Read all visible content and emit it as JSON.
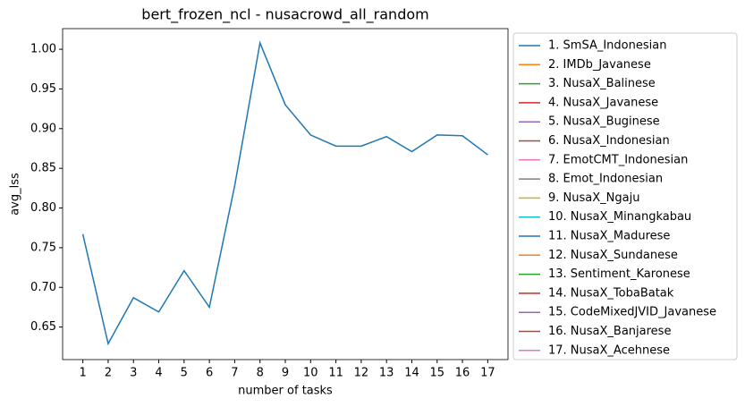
{
  "chart_data": {
    "type": "line",
    "title": "bert_frozen_ncl - nusacrowd_all_random",
    "xlabel": "number of tasks",
    "ylabel": "avg_lss",
    "x": [
      1,
      2,
      3,
      4,
      5,
      6,
      7,
      8,
      9,
      10,
      11,
      12,
      13,
      14,
      15,
      16,
      17
    ],
    "xlim": [
      0.2,
      17.8
    ],
    "xticks": [
      1,
      2,
      3,
      4,
      5,
      6,
      7,
      8,
      9,
      10,
      11,
      12,
      13,
      14,
      15,
      16,
      17
    ],
    "ylim": [
      0.609,
      1.026
    ],
    "yticks": [
      0.65,
      {
        "value": 0.7,
        "label": "0.70"
      },
      0.75,
      {
        "value": 0.8,
        "label": "0.80"
      },
      0.85,
      {
        "value": 0.9,
        "label": "0.90"
      },
      0.95,
      {
        "value": 1,
        "label": "1.00"
      }
    ],
    "grid": false,
    "legend": "outside-right",
    "series": [
      {
        "name": "1. SmSA_Indonesian",
        "color": "#1f77b4",
        "values": [
          0.767,
          0.629,
          0.687,
          0.669,
          0.721,
          0.675,
          0.828,
          1.008,
          0.93,
          0.892,
          0.878,
          0.878,
          0.89,
          0.871,
          0.892,
          0.891,
          0.867
        ]
      },
      {
        "name": "2. IMDb_Javanese",
        "color": "#ff7f0e",
        "values": [
          null,
          null,
          null,
          null,
          null,
          null,
          null,
          null,
          null,
          null,
          null,
          null,
          null,
          null,
          null,
          null,
          null
        ]
      },
      {
        "name": "3. NusaX_Balinese",
        "color": "#2ca02c",
        "values": [
          null,
          null,
          null,
          null,
          null,
          null,
          null,
          null,
          null,
          null,
          null,
          null,
          null,
          null,
          null,
          null,
          null
        ]
      },
      {
        "name": "4. NusaX_Javanese",
        "color": "#d62728",
        "values": [
          null,
          null,
          null,
          null,
          null,
          null,
          null,
          null,
          null,
          null,
          null,
          null,
          null,
          null,
          null,
          null,
          null
        ]
      },
      {
        "name": "5. NusaX_Buginese",
        "color": "#9467bd",
        "values": [
          null,
          null,
          null,
          null,
          null,
          null,
          null,
          null,
          null,
          null,
          null,
          null,
          null,
          null,
          null,
          null,
          null
        ]
      },
      {
        "name": "6. NusaX_Indonesian",
        "color": "#8c564b",
        "values": [
          null,
          null,
          null,
          null,
          null,
          null,
          null,
          null,
          null,
          null,
          null,
          null,
          null,
          null,
          null,
          null,
          null
        ]
      },
      {
        "name": "7. EmotCMT_Indonesian",
        "color": "#e377c2",
        "values": [
          null,
          null,
          null,
          null,
          null,
          null,
          null,
          null,
          null,
          null,
          null,
          null,
          null,
          null,
          null,
          null,
          null
        ]
      },
      {
        "name": "8. Emot_Indonesian",
        "color": "#7f7f7f",
        "values": [
          null,
          null,
          null,
          null,
          null,
          null,
          null,
          null,
          null,
          null,
          null,
          null,
          null,
          null,
          null,
          null,
          null
        ]
      },
      {
        "name": "9. NusaX_Ngaju",
        "color": "#bcbd22",
        "values": [
          null,
          null,
          null,
          null,
          null,
          null,
          null,
          null,
          null,
          null,
          null,
          null,
          null,
          null,
          null,
          null,
          null
        ]
      },
      {
        "name": "10. NusaX_Minangkabau",
        "color": "#17becf",
        "values": [
          null,
          null,
          null,
          null,
          null,
          null,
          null,
          null,
          null,
          null,
          null,
          null,
          null,
          null,
          null,
          null,
          null
        ]
      },
      {
        "name": "11. NusaX_Madurese",
        "color": "#1f77b4",
        "values": [
          null,
          null,
          null,
          null,
          null,
          null,
          null,
          null,
          null,
          null,
          null,
          null,
          null,
          null,
          null,
          null,
          null
        ]
      },
      {
        "name": "12. NusaX_Sundanese",
        "color": "#ff7f0e",
        "values": [
          null,
          null,
          null,
          null,
          null,
          null,
          null,
          null,
          null,
          null,
          null,
          null,
          null,
          null,
          null,
          null,
          null
        ]
      },
      {
        "name": "13. Sentiment_Karonese",
        "color": "#2ca02c",
        "values": [
          null,
          null,
          null,
          null,
          null,
          null,
          null,
          null,
          null,
          null,
          null,
          null,
          null,
          null,
          null,
          null,
          null
        ]
      },
      {
        "name": "14. NusaX_TobaBatak",
        "color": "#d62728",
        "values": [
          null,
          null,
          null,
          null,
          null,
          null,
          null,
          null,
          null,
          null,
          null,
          null,
          null,
          null,
          null,
          null,
          null
        ]
      },
      {
        "name": "15. CodeMixedJVID_Javanese",
        "color": "#9467bd",
        "values": [
          null,
          null,
          null,
          null,
          null,
          null,
          null,
          null,
          null,
          null,
          null,
          null,
          null,
          null,
          null,
          null,
          null
        ]
      },
      {
        "name": "16. NusaX_Banjarese",
        "color": "#8c564b",
        "values": [
          null,
          null,
          null,
          null,
          null,
          null,
          null,
          null,
          null,
          null,
          null,
          null,
          null,
          null,
          null,
          null,
          null
        ]
      },
      {
        "name": "17. NusaX_Acehnese",
        "color": "#e377c2",
        "values": [
          null,
          null,
          null,
          null,
          null,
          null,
          null,
          null,
          null,
          null,
          null,
          null,
          null,
          null,
          null,
          null,
          null
        ]
      }
    ]
  }
}
